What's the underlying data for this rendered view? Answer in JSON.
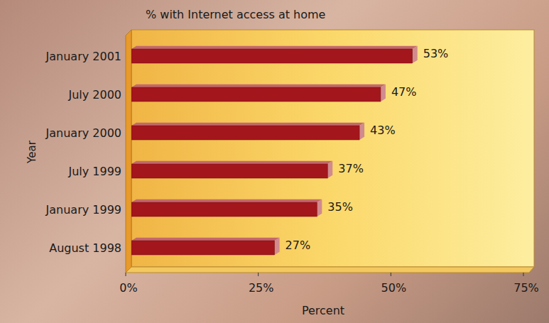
{
  "chart_data": {
    "type": "bar",
    "orientation": "horizontal",
    "title": "% with Internet access at home",
    "x_label": "Percent",
    "y_label": "Year",
    "categories": [
      "January 2001",
      "July 2000",
      "January 2000",
      "July 1999",
      "January 1999",
      "August 1998"
    ],
    "values": [
      53,
      47,
      43,
      37,
      35,
      27
    ],
    "value_labels": [
      "53%",
      "47%",
      "43%",
      "37%",
      "35%",
      "27%"
    ],
    "color": "#a3161c",
    "xlim": [
      0,
      75
    ],
    "xticks": [
      {
        "value": 0,
        "label": "0%"
      },
      {
        "value": 25,
        "label": "25%"
      },
      {
        "value": 50,
        "label": "50%"
      },
      {
        "value": 75,
        "label": "75%"
      }
    ],
    "data_labels": true,
    "grid": false
  }
}
